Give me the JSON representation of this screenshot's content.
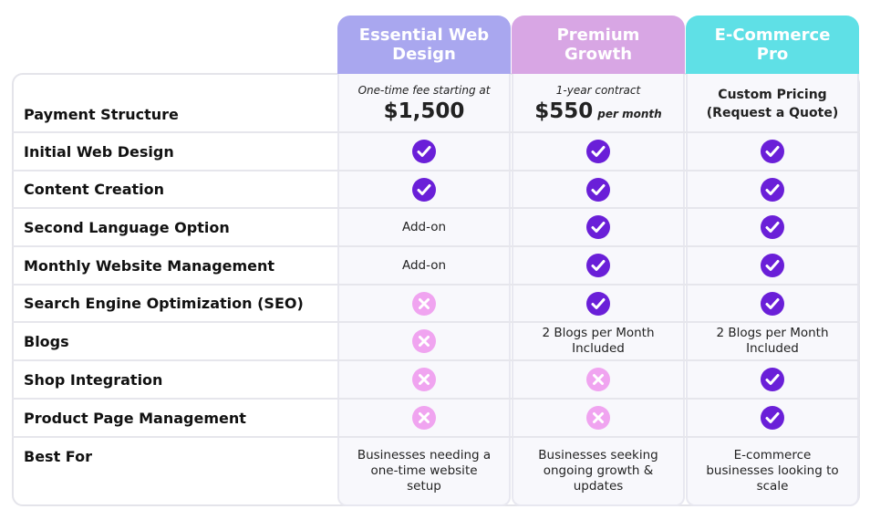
{
  "columns": [
    {
      "title": "Essential Web Design",
      "color": "#a9a7ef"
    },
    {
      "title": "Premium Growth",
      "color": "#d8a6e4"
    },
    {
      "title": "E-Commerce Pro",
      "color": "#5fe0e6"
    }
  ],
  "rows": [
    {
      "label": "Payment Structure",
      "cells": [
        {
          "note": "One-time fee starting at",
          "price": "$1,500"
        },
        {
          "note": "1-year contract",
          "price": "$550",
          "suffix": "per month"
        },
        {
          "strong": "Custom Pricing (Request a Quote)"
        }
      ]
    },
    {
      "label": "Initial Web Design",
      "cells": [
        true,
        true,
        true
      ]
    },
    {
      "label": "Content Creation",
      "cells": [
        true,
        true,
        true
      ]
    },
    {
      "label": "Second Language Option",
      "cells": [
        "Add-on",
        true,
        true
      ]
    },
    {
      "label": "Monthly Website Management",
      "cells": [
        "Add-on",
        true,
        true
      ]
    },
    {
      "label": "Search Engine Optimization (SEO)",
      "cells": [
        false,
        true,
        true
      ]
    },
    {
      "label": "Blogs",
      "cells": [
        false,
        "2 Blogs per Month Included",
        "2 Blogs per Month Included"
      ]
    },
    {
      "label": "Shop Integration",
      "cells": [
        false,
        false,
        true
      ]
    },
    {
      "label": "Product Page Management",
      "cells": [
        false,
        false,
        true
      ]
    },
    {
      "label": "Best For",
      "cells": [
        "Businesses needing a one-time website setup",
        "Businesses seeking ongoing growth & updates",
        "E-commerce businesses looking to scale"
      ]
    }
  ]
}
